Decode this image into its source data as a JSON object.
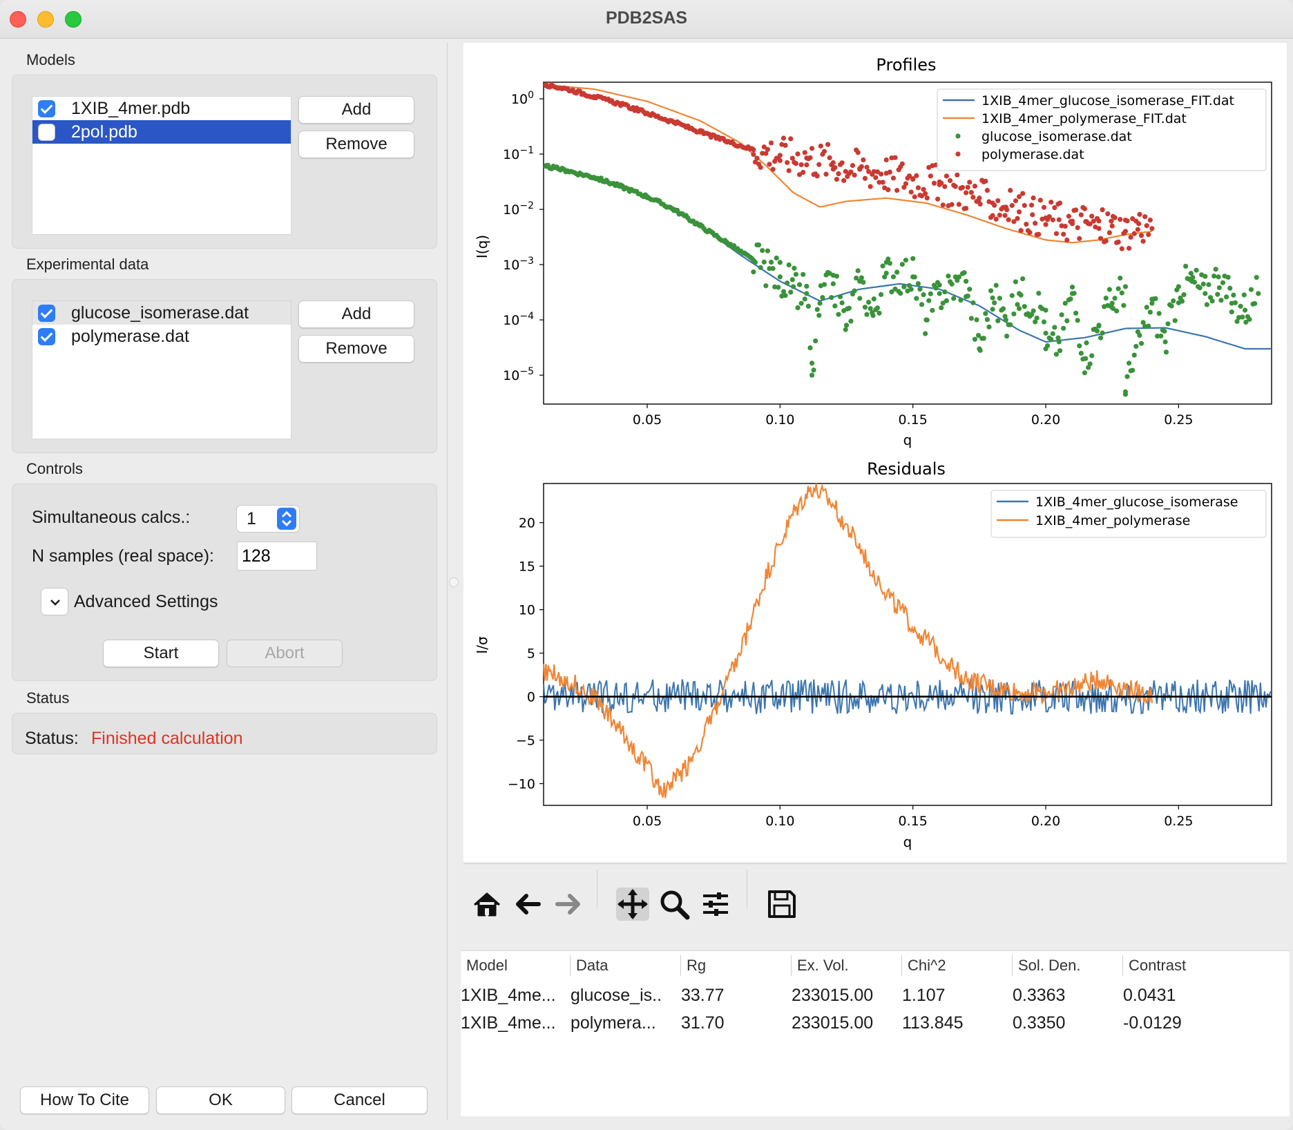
{
  "window": {
    "title": "PDB2SAS"
  },
  "models": {
    "label": "Models",
    "items": [
      {
        "name": "1XIB_4mer.pdb",
        "checked": true,
        "selected": false
      },
      {
        "name": "2pol.pdb",
        "checked": false,
        "selected": true
      }
    ],
    "add_label": "Add",
    "remove_label": "Remove"
  },
  "experimental": {
    "label": "Experimental data",
    "items": [
      {
        "name": "glucose_isomerase.dat",
        "checked": true
      },
      {
        "name": "polymerase.dat",
        "checked": true
      }
    ],
    "add_label": "Add",
    "remove_label": "Remove"
  },
  "controls": {
    "label": "Controls",
    "simultaneous_label": "Simultaneous calcs.:",
    "simultaneous_value": "1",
    "nsamples_label": "N samples (real space):",
    "nsamples_value": "128",
    "advanced_label": "Advanced Settings",
    "start_label": "Start",
    "abort_label": "Abort"
  },
  "status": {
    "section_label": "Status",
    "label": "Status:",
    "value": "Finished calculation",
    "value_color": "#e0321e"
  },
  "footer": {
    "cite_label": "How To Cite",
    "ok_label": "OK",
    "cancel_label": "Cancel"
  },
  "toolbar": {
    "icons": [
      "home-icon",
      "back-arrow-icon",
      "forward-arrow-icon",
      "pan-icon",
      "zoom-icon",
      "configure-subplots-icon",
      "save-icon"
    ]
  },
  "results_table": {
    "columns": [
      "Model",
      "Data",
      "Rg",
      "Ex. Vol.",
      "Chi^2",
      "Sol. Den.",
      "Contrast"
    ],
    "rows": [
      [
        "1XIB_4me...",
        "glucose_is..",
        "33.77",
        "233015.00",
        "1.107",
        "0.3363",
        "0.0431"
      ],
      [
        "1XIB_4me...",
        "polymera...",
        "31.70",
        "233015.00",
        "113.845",
        "0.3350",
        "-0.0129"
      ]
    ]
  },
  "chart_data": [
    {
      "type": "line",
      "title": "Profiles",
      "xlabel": "q",
      "ylabel": "I(q)",
      "yscale": "log",
      "xlim": [
        0.011,
        0.285
      ],
      "ylim": [
        3e-06,
        2
      ],
      "xticks": [
        "0.05",
        "0.10",
        "0.15",
        "0.20",
        "0.25"
      ],
      "yticks": [
        "10^0",
        "10^-1",
        "10^-2",
        "10^-3",
        "10^-4",
        "10^-5"
      ],
      "legend_position": "top-right",
      "series": [
        {
          "name": "1XIB_4mer_glucose_isomerase_FIT.dat",
          "style": "line",
          "color": "#3b75af",
          "x": [
            0.011,
            0.03,
            0.05,
            0.07,
            0.085,
            0.1,
            0.115,
            0.13,
            0.145,
            0.16,
            0.175,
            0.19,
            0.2,
            0.215,
            0.23,
            0.245,
            0.26,
            0.275,
            0.285
          ],
          "y": [
            0.058,
            0.04,
            0.017,
            0.005,
            0.0015,
            0.0005,
            0.00022,
            0.00036,
            0.00045,
            0.00036,
            0.00018,
            6.5e-05,
            4e-05,
            4.8e-05,
            7e-05,
            7.2e-05,
            5e-05,
            3e-05,
            3e-05
          ]
        },
        {
          "name": "1XIB_4mer_polymerase_FIT.dat",
          "style": "line",
          "color": "#ef8636",
          "x": [
            0.011,
            0.03,
            0.05,
            0.07,
            0.085,
            0.095,
            0.105,
            0.115,
            0.125,
            0.14,
            0.155,
            0.17,
            0.185,
            0.2,
            0.21,
            0.22,
            0.23,
            0.24
          ],
          "y": [
            1.8,
            1.5,
            0.9,
            0.4,
            0.16,
            0.06,
            0.02,
            0.011,
            0.014,
            0.016,
            0.013,
            0.008,
            0.0045,
            0.0028,
            0.0025,
            0.0028,
            0.0035,
            0.004
          ]
        },
        {
          "name": "glucose_isomerase.dat",
          "style": "scatter",
          "color": "#3a923a",
          "x": [
            0.012,
            0.02,
            0.03,
            0.04,
            0.05,
            0.06,
            0.07,
            0.08,
            0.09,
            0.1,
            0.105,
            0.11,
            0.115,
            0.12,
            0.13,
            0.14,
            0.15,
            0.16,
            0.17,
            0.18,
            0.19,
            0.2,
            0.21,
            0.22,
            0.23,
            0.24,
            0.25,
            0.26,
            0.27,
            0.28,
            0.112,
            0.125,
            0.135,
            0.155,
            0.175,
            0.185,
            0.205,
            0.215,
            0.225,
            0.245,
            0.255,
            0.265,
            0.275,
            0.2,
            0.23
          ],
          "y": [
            0.06,
            0.05,
            0.038,
            0.026,
            0.017,
            0.01,
            0.005,
            0.0025,
            0.0012,
            0.0006,
            0.0004,
            0.0003,
            0.0002,
            0.00045,
            0.0005,
            0.0007,
            0.0006,
            0.0003,
            0.0005,
            0.00025,
            0.0003,
            0.00015,
            0.0003,
            8e-05,
            0.0004,
            0.0002,
            0.0004,
            0.0003,
            0.0002,
            0.0003,
            1e-05,
            8e-05,
            0.00012,
            0.0001,
            3e-05,
            0.0001,
            4e-05,
            2e-05,
            0.0002,
            4e-05,
            0.0005,
            0.0006,
            0.00015,
            3e-05,
            5e-06
          ]
        },
        {
          "name": "polymerase.dat",
          "style": "scatter",
          "color": "#c93a32",
          "x": [
            0.012,
            0.02,
            0.03,
            0.04,
            0.05,
            0.06,
            0.07,
            0.08,
            0.09,
            0.1,
            0.11,
            0.12,
            0.13,
            0.14,
            0.15,
            0.16,
            0.17,
            0.175,
            0.18,
            0.185,
            0.19,
            0.195,
            0.2,
            0.205,
            0.21,
            0.215,
            0.22,
            0.225,
            0.23,
            0.235,
            0.24
          ],
          "y": [
            1.8,
            1.5,
            1.1,
            0.8,
            0.55,
            0.38,
            0.25,
            0.17,
            0.12,
            0.095,
            0.085,
            0.07,
            0.055,
            0.045,
            0.035,
            0.028,
            0.02,
            0.016,
            0.013,
            0.011,
            0.009,
            0.008,
            0.007,
            0.0065,
            0.0055,
            0.006,
            0.0045,
            0.005,
            0.004,
            0.0055,
            0.0045
          ]
        }
      ]
    },
    {
      "type": "line",
      "title": "Residuals",
      "xlabel": "q",
      "ylabel": "I/σ",
      "xlim": [
        0.011,
        0.285
      ],
      "ylim": [
        -12.5,
        24.5
      ],
      "xticks": [
        "0.05",
        "0.10",
        "0.15",
        "0.20",
        "0.25"
      ],
      "yticks": [
        "20",
        "15",
        "10",
        "5",
        "0",
        "−5",
        "−10"
      ],
      "legend_position": "top-right",
      "series": [
        {
          "name": "1XIB_4mer_glucose_isomerase",
          "color": "#3b75af",
          "x": [
            0.011,
            0.285
          ],
          "y": [
            0,
            0
          ],
          "noise_amplitude": 2
        },
        {
          "name": "1XIB_4mer_polymerase",
          "color": "#ef8636",
          "x": [
            0.011,
            0.02,
            0.03,
            0.04,
            0.05,
            0.056,
            0.065,
            0.075,
            0.085,
            0.095,
            0.105,
            0.112,
            0.12,
            0.13,
            0.14,
            0.15,
            0.16,
            0.17,
            0.18,
            0.19,
            0.2,
            0.21,
            0.22,
            0.23,
            0.24
          ],
          "y": [
            3,
            2,
            0,
            -4,
            -8,
            -11,
            -8,
            -2,
            5,
            14,
            21,
            24,
            22,
            17,
            12,
            8,
            5,
            2,
            1,
            0.5,
            0.5,
            1,
            2,
            1,
            0
          ]
        },
        {
          "name": "",
          "color": "#000000",
          "x": [
            0.011,
            0.285
          ],
          "y": [
            0,
            0
          ]
        }
      ]
    }
  ]
}
